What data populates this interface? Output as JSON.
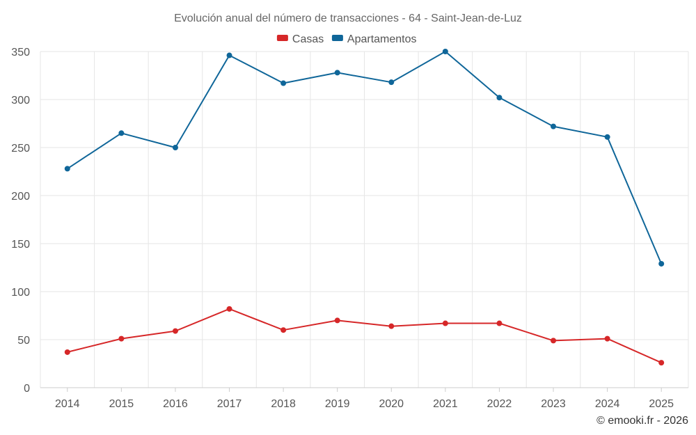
{
  "chart_data": {
    "type": "line",
    "title": "Evolución anual del número de transacciones - 64 - Saint-Jean-de-Luz",
    "xlabel": "",
    "ylabel": "",
    "categories": [
      "2014",
      "2015",
      "2016",
      "2017",
      "2018",
      "2019",
      "2020",
      "2021",
      "2022",
      "2023",
      "2024",
      "2025"
    ],
    "ylim": [
      0,
      350
    ],
    "yticks": [
      0,
      50,
      100,
      150,
      200,
      250,
      300,
      350
    ],
    "grid": true,
    "legend_position": "top-center",
    "series": [
      {
        "name": "Casas",
        "color": "#d62728",
        "values": [
          37,
          51,
          59,
          82,
          60,
          70,
          64,
          67,
          67,
          49,
          51,
          26
        ]
      },
      {
        "name": "Apartamentos",
        "color": "#0f6699",
        "values": [
          228,
          265,
          250,
          346,
          317,
          328,
          318,
          350,
          302,
          272,
          261,
          129
        ]
      }
    ],
    "credit": "© emooki.fr - 2026"
  }
}
